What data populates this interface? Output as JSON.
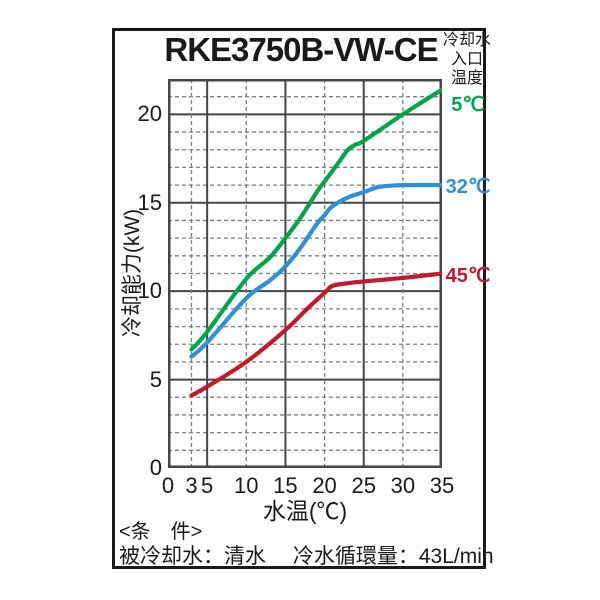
{
  "title": "RKE3750B-VW-CE",
  "colors": {
    "text": "#1a1a1a",
    "border": "#1a1a1a",
    "grid_solid": "#454545",
    "grid_dash": "#7d7d7d",
    "green": "#00a44a",
    "blue": "#2e90d8",
    "red": "#c01a2c"
  },
  "legend": {
    "header_lines": [
      "冷却水",
      "入口",
      "温度"
    ],
    "entries": [
      {
        "label": "5℃",
        "color": "#00a44a"
      },
      {
        "label": "32℃",
        "color": "#2e90d8"
      },
      {
        "label": "45℃",
        "color": "#c01a2c"
      }
    ]
  },
  "axes": {
    "xlabel": "水温(℃)",
    "ylabel": "冷却能力(kW)"
  },
  "chart_data": {
    "type": "line",
    "title": "RKE3750B-VW-CE",
    "xlabel": "水温(℃)",
    "ylabel": "冷却能力(kW)",
    "xlim": [
      0,
      35
    ],
    "ylim": [
      0,
      22
    ],
    "x_ticks": [
      0,
      3,
      5,
      10,
      15,
      20,
      25,
      30,
      35
    ],
    "y_ticks": [
      0,
      5,
      10,
      15,
      20
    ],
    "x_gridlines_solid": [
      5,
      15,
      25
    ],
    "x_gridlines_dashed": [
      3,
      10,
      20,
      30
    ],
    "y_gridline_step": 1,
    "y_solid_every": 5,
    "grid": true,
    "legend_position": "right",
    "series": [
      {
        "name": "5℃",
        "color": "#00a44a",
        "points": [
          [
            3,
            6.7
          ],
          [
            5,
            7.7
          ],
          [
            10,
            10.7
          ],
          [
            13,
            11.9
          ],
          [
            15,
            13.0
          ],
          [
            17,
            14.2
          ],
          [
            19,
            15.6
          ],
          [
            20,
            16.2
          ],
          [
            21,
            16.8
          ],
          [
            22,
            17.4
          ],
          [
            23,
            18.0
          ],
          [
            24,
            18.3
          ],
          [
            25,
            18.5
          ],
          [
            30,
            20.0
          ],
          [
            35,
            21.4
          ]
        ]
      },
      {
        "name": "32℃",
        "color": "#2e90d8",
        "points": [
          [
            3,
            6.3
          ],
          [
            5,
            7.1
          ],
          [
            10,
            9.6
          ],
          [
            13,
            10.6
          ],
          [
            15,
            11.4
          ],
          [
            17,
            12.5
          ],
          [
            19,
            13.8
          ],
          [
            20,
            14.3
          ],
          [
            21,
            14.8
          ],
          [
            23,
            15.3
          ],
          [
            25,
            15.6
          ],
          [
            27,
            15.9
          ],
          [
            30,
            16.0
          ],
          [
            35,
            16.0
          ]
        ]
      },
      {
        "name": "45℃",
        "color": "#c01a2c",
        "points": [
          [
            3,
            4.1
          ],
          [
            5,
            4.6
          ],
          [
            10,
            6.0
          ],
          [
            15,
            7.8
          ],
          [
            18,
            9.1
          ],
          [
            20,
            9.9
          ],
          [
            21,
            10.3
          ],
          [
            23,
            10.45
          ],
          [
            25,
            10.55
          ],
          [
            30,
            10.75
          ],
          [
            35,
            11.0
          ]
        ]
      }
    ]
  },
  "footer": {
    "condition_title": "<条　件>",
    "condition_text": "被冷却水：清水　 冷水循環量：43L/min"
  }
}
